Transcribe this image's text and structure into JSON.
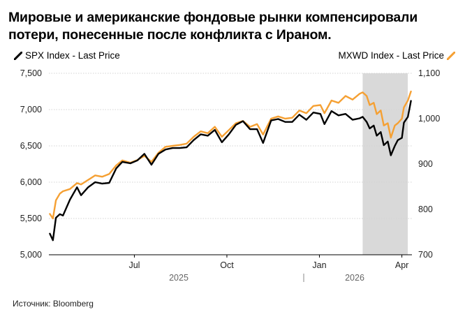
{
  "title": "Мировые и американские фондовые рынки компенсировали потери, понесенные после конфликта с Ираном.",
  "source": "Источник: Bloomberg",
  "colors": {
    "spx": "#000000",
    "mxwd": "#f5a033",
    "shade": "#d9d9d9",
    "grid": "#d3d3d3"
  },
  "chart_data": {
    "type": "line",
    "x_labels": [
      "Jul",
      "Oct",
      "Jan",
      "Apr"
    ],
    "year_labels": [
      "2025",
      "2026"
    ],
    "y_left_ticks": [
      5000,
      5500,
      6000,
      6500,
      7000,
      7500
    ],
    "y_left_tick_labels": [
      "5,000",
      "5,500",
      "6,000",
      "6,500",
      "7,000",
      "7,500"
    ],
    "y_left_range": [
      5000,
      7500
    ],
    "y_right_ticks": [
      700,
      800,
      900,
      1000,
      1100
    ],
    "y_right_tick_labels": [
      "700",
      "800",
      "900",
      "1,000",
      "1,100"
    ],
    "y_right_range": [
      700,
      1100
    ],
    "x_range": [
      "2025-04-21",
      "2026-04-17"
    ],
    "shaded_region": [
      "2026-02-27",
      "2026-04-15"
    ],
    "grid": true,
    "series": [
      {
        "name": "SPX Index - Last Price",
        "axis": "left",
        "points": [
          [
            "2025-04-22",
            5290
          ],
          [
            "2025-04-25",
            5200
          ],
          [
            "2025-04-28",
            5510
          ],
          [
            "2025-05-02",
            5560
          ],
          [
            "2025-05-05",
            5540
          ],
          [
            "2025-05-12",
            5760
          ],
          [
            "2025-05-19",
            5930
          ],
          [
            "2025-05-23",
            5820
          ],
          [
            "2025-05-30",
            5930
          ],
          [
            "2025-06-06",
            6000
          ],
          [
            "2025-06-13",
            5980
          ],
          [
            "2025-06-20",
            5990
          ],
          [
            "2025-06-27",
            6190
          ],
          [
            "2025-07-03",
            6280
          ],
          [
            "2025-07-11",
            6260
          ],
          [
            "2025-07-18",
            6300
          ],
          [
            "2025-07-25",
            6390
          ],
          [
            "2025-08-01",
            6240
          ],
          [
            "2025-08-08",
            6390
          ],
          [
            "2025-08-15",
            6450
          ],
          [
            "2025-08-22",
            6470
          ],
          [
            "2025-08-29",
            6470
          ],
          [
            "2025-09-05",
            6480
          ],
          [
            "2025-09-12",
            6580
          ],
          [
            "2025-09-19",
            6660
          ],
          [
            "2025-09-26",
            6640
          ],
          [
            "2025-10-03",
            6720
          ],
          [
            "2025-10-10",
            6550
          ],
          [
            "2025-10-17",
            6660
          ],
          [
            "2025-10-24",
            6790
          ],
          [
            "2025-10-31",
            6840
          ],
          [
            "2025-11-07",
            6730
          ],
          [
            "2025-11-14",
            6730
          ],
          [
            "2025-11-20",
            6540
          ],
          [
            "2025-11-28",
            6850
          ],
          [
            "2025-12-05",
            6870
          ],
          [
            "2025-12-12",
            6830
          ],
          [
            "2025-12-19",
            6830
          ],
          [
            "2025-12-26",
            6930
          ],
          [
            "2026-01-02",
            6860
          ],
          [
            "2026-01-09",
            6960
          ],
          [
            "2026-01-16",
            6940
          ],
          [
            "2026-01-20",
            6800
          ],
          [
            "2026-01-27",
            6980
          ],
          [
            "2026-02-03",
            6920
          ],
          [
            "2026-02-10",
            6940
          ],
          [
            "2026-02-17",
            6860
          ],
          [
            "2026-02-24",
            6880
          ],
          [
            "2026-02-27",
            6900
          ],
          [
            "2026-03-03",
            6830
          ],
          [
            "2026-03-06",
            6740
          ],
          [
            "2026-03-10",
            6780
          ],
          [
            "2026-03-13",
            6640
          ],
          [
            "2026-03-17",
            6690
          ],
          [
            "2026-03-20",
            6510
          ],
          [
            "2026-03-24",
            6560
          ],
          [
            "2026-03-27",
            6370
          ],
          [
            "2026-03-31",
            6500
          ],
          [
            "2026-04-03",
            6580
          ],
          [
            "2026-04-07",
            6610
          ],
          [
            "2026-04-09",
            6820
          ],
          [
            "2026-04-13",
            6900
          ],
          [
            "2026-04-16",
            7120
          ]
        ]
      },
      {
        "name": "MXWD Index - Last Price",
        "axis": "right",
        "points": [
          [
            "2025-04-22",
            790
          ],
          [
            "2025-04-25",
            780
          ],
          [
            "2025-04-28",
            820
          ],
          [
            "2025-05-02",
            835
          ],
          [
            "2025-05-05",
            840
          ],
          [
            "2025-05-12",
            845
          ],
          [
            "2025-05-19",
            858
          ],
          [
            "2025-05-23",
            855
          ],
          [
            "2025-05-30",
            865
          ],
          [
            "2025-06-06",
            875
          ],
          [
            "2025-06-13",
            872
          ],
          [
            "2025-06-20",
            878
          ],
          [
            "2025-06-27",
            897
          ],
          [
            "2025-07-03",
            908
          ],
          [
            "2025-07-11",
            903
          ],
          [
            "2025-07-18",
            909
          ],
          [
            "2025-07-25",
            918
          ],
          [
            "2025-08-01",
            905
          ],
          [
            "2025-08-08",
            925
          ],
          [
            "2025-08-15",
            938
          ],
          [
            "2025-08-22",
            940
          ],
          [
            "2025-08-29",
            942
          ],
          [
            "2025-09-05",
            945
          ],
          [
            "2025-09-12",
            960
          ],
          [
            "2025-09-19",
            972
          ],
          [
            "2025-09-26",
            968
          ],
          [
            "2025-10-03",
            982
          ],
          [
            "2025-10-10",
            960
          ],
          [
            "2025-10-17",
            975
          ],
          [
            "2025-10-24",
            990
          ],
          [
            "2025-10-31",
            995
          ],
          [
            "2025-11-07",
            982
          ],
          [
            "2025-11-14",
            988
          ],
          [
            "2025-11-20",
            965
          ],
          [
            "2025-11-28",
            1000
          ],
          [
            "2025-12-05",
            1005
          ],
          [
            "2025-12-12",
            1000
          ],
          [
            "2025-12-19",
            1002
          ],
          [
            "2025-12-26",
            1018
          ],
          [
            "2026-01-02",
            1012
          ],
          [
            "2026-01-09",
            1028
          ],
          [
            "2026-01-16",
            1030
          ],
          [
            "2026-01-20",
            1012
          ],
          [
            "2026-01-27",
            1040
          ],
          [
            "2026-02-03",
            1035
          ],
          [
            "2026-02-10",
            1050
          ],
          [
            "2026-02-17",
            1042
          ],
          [
            "2026-02-24",
            1055
          ],
          [
            "2026-02-27",
            1058
          ],
          [
            "2026-03-03",
            1050
          ],
          [
            "2026-03-06",
            1030
          ],
          [
            "2026-03-10",
            1035
          ],
          [
            "2026-03-13",
            1010
          ],
          [
            "2026-03-17",
            1018
          ],
          [
            "2026-03-20",
            985
          ],
          [
            "2026-03-24",
            990
          ],
          [
            "2026-03-27",
            958
          ],
          [
            "2026-03-31",
            985
          ],
          [
            "2026-04-03",
            990
          ],
          [
            "2026-04-07",
            1000
          ],
          [
            "2026-04-09",
            1025
          ],
          [
            "2026-04-13",
            1040
          ],
          [
            "2026-04-16",
            1060
          ]
        ]
      }
    ]
  }
}
